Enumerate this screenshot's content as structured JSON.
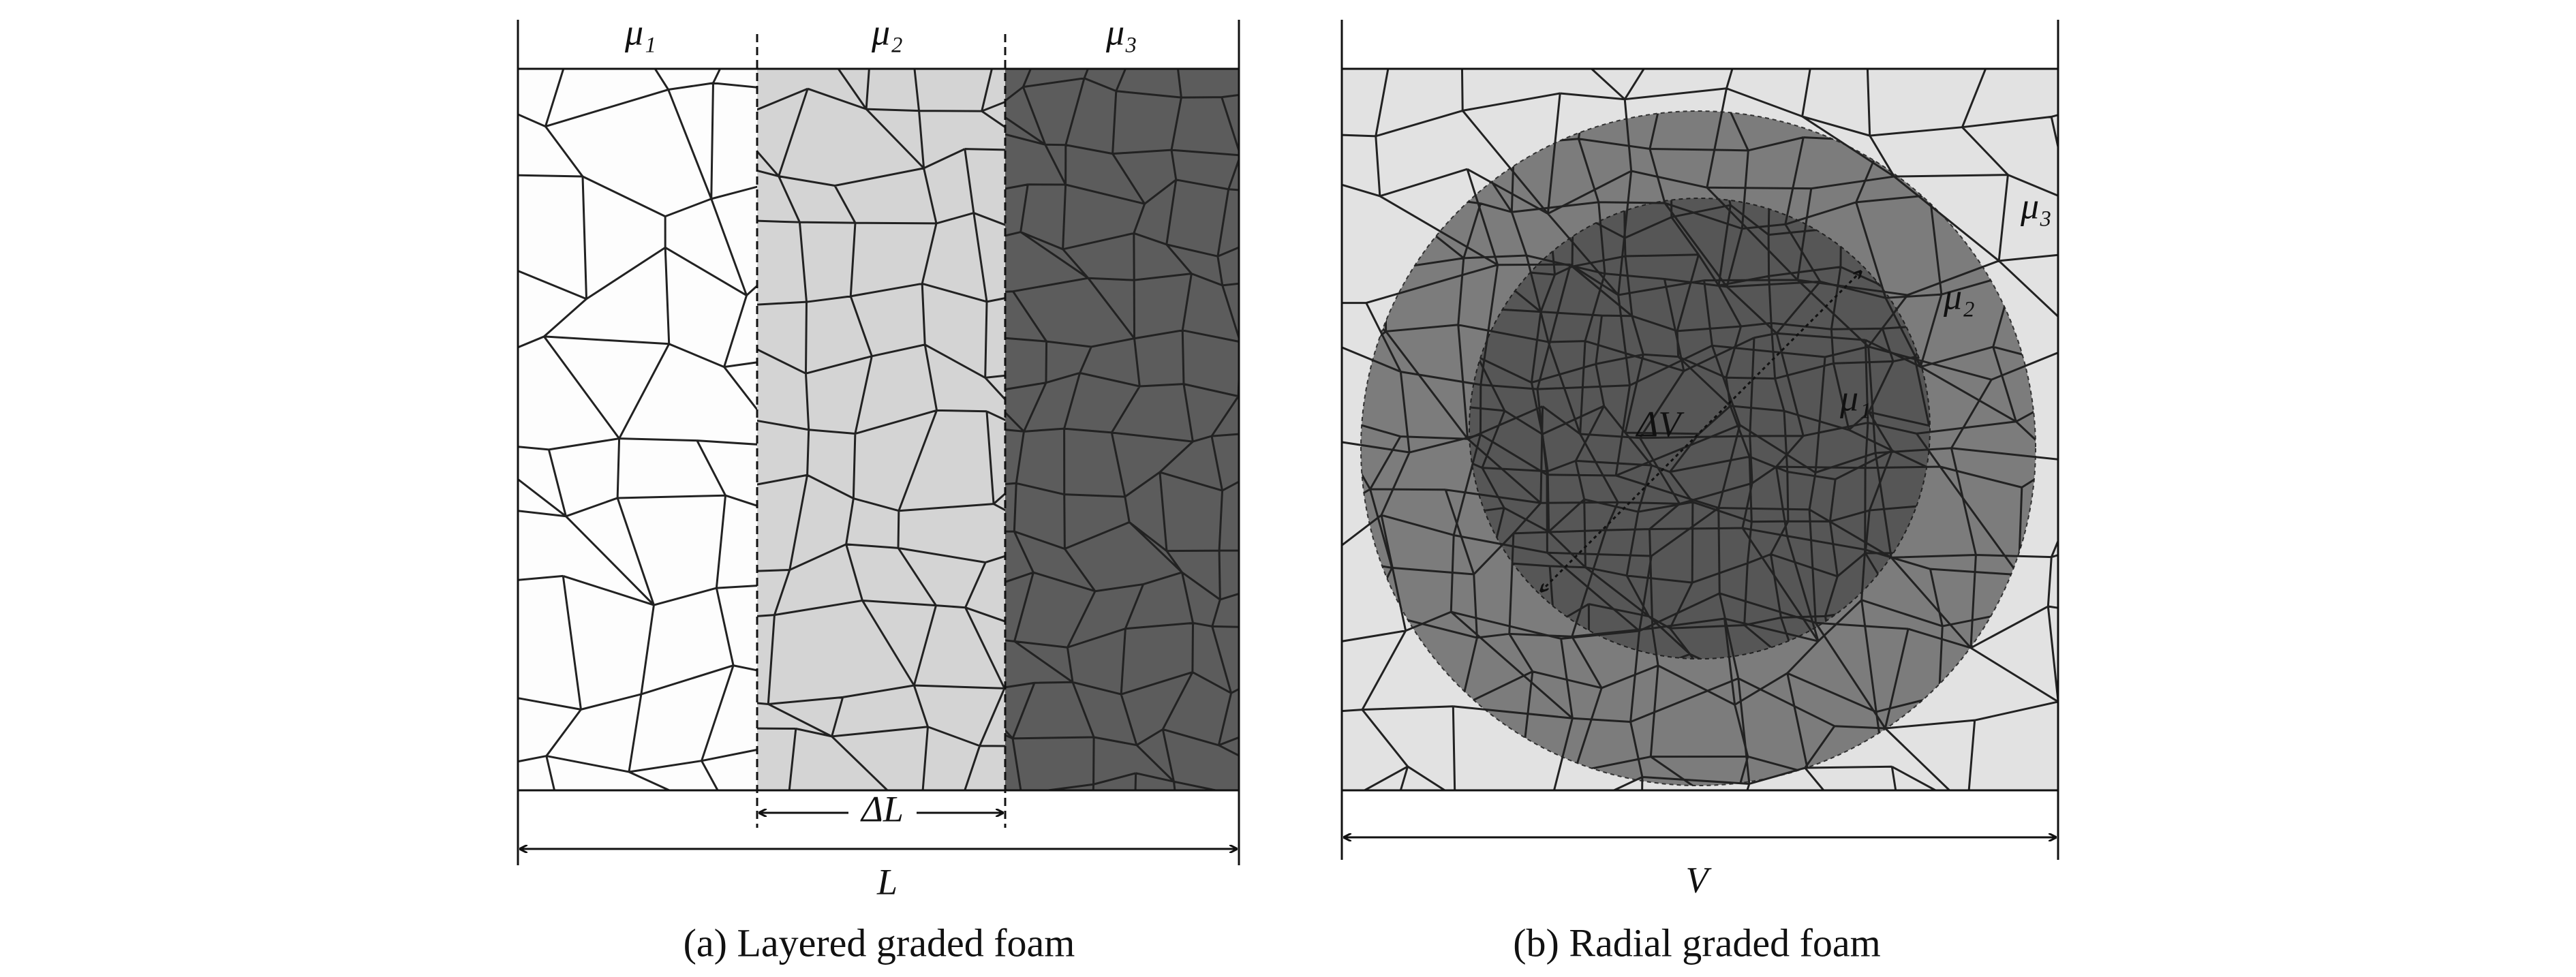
{
  "panels": [
    {
      "caption": "(a) Layered graded foam",
      "layers": [
        "μ₁",
        "μ₂",
        "μ₃"
      ],
      "gap_label": "ΔL",
      "width_label": "L"
    },
    {
      "caption": "(b) Radial graded foam",
      "layers": [
        "μ₁",
        "μ₂",
        "μ₃"
      ],
      "radius_label": "ΔV",
      "width_label": "V"
    }
  ]
}
